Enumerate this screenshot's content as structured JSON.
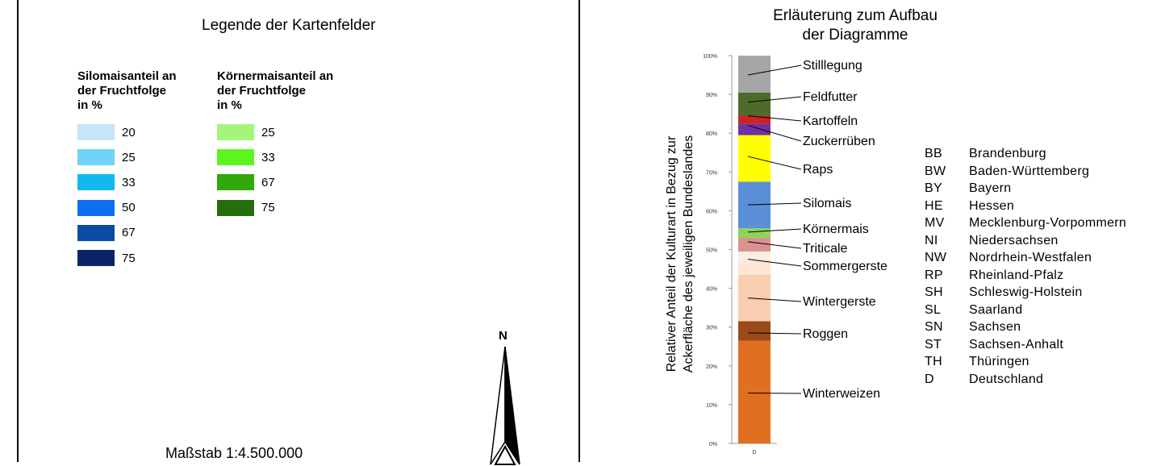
{
  "legend": {
    "title": "Legende der Kartenfelder",
    "silomais": {
      "heading": [
        "Silomaisanteil an",
        "der Fruchtfolge",
        "in %"
      ],
      "items": [
        {
          "label": "20",
          "color": "#c5e6f9"
        },
        {
          "label": "25",
          "color": "#6fd4f7"
        },
        {
          "label": "33",
          "color": "#13b8ee"
        },
        {
          "label": "50",
          "color": "#0d6ff0"
        },
        {
          "label": "67",
          "color": "#0c4aa6"
        },
        {
          "label": "75",
          "color": "#0b2468"
        }
      ]
    },
    "koernermais": {
      "heading": [
        "Körnermaisanteil an",
        "der Fruchtfolge",
        "in %"
      ],
      "items": [
        {
          "label": "25",
          "color": "#a4f57b"
        },
        {
          "label": "33",
          "color": "#5cf520"
        },
        {
          "label": "67",
          "color": "#31a80a"
        },
        {
          "label": "75",
          "color": "#266e0c"
        }
      ]
    },
    "scale": "Maßstab 1:4.500.000",
    "north": "N"
  },
  "chart_data": {
    "type": "bar",
    "title": "Erläuterung zum Aufbau der Diagramme",
    "title_lines": [
      "Erläuterung zum Aufbau",
      "der Diagramme"
    ],
    "ylabel_lines": [
      "Relativer Anteil der Kulturart in Bezug zur",
      "Ackerfläche des jeweiligen Bundeslandes"
    ],
    "categories": [
      "D"
    ],
    "ylim": [
      0,
      100
    ],
    "y_unit": "%",
    "yticks": [
      0,
      10,
      20,
      30,
      40,
      50,
      60,
      70,
      80,
      90,
      100
    ],
    "ytick_labels": [
      "0%",
      "10%",
      "20%",
      "30%",
      "40%",
      "50%",
      "60%",
      "70%",
      "80%",
      "90%",
      "100%"
    ],
    "stacked": true,
    "series": [
      {
        "name": "Winterweizen",
        "values": [
          26.5
        ],
        "color": "#e07020"
      },
      {
        "name": "Roggen",
        "values": [
          5
        ],
        "color": "#9a4a1a"
      },
      {
        "name": "Wintergerste",
        "values": [
          12
        ],
        "color": "#f9cdb0"
      },
      {
        "name": "Sommergerste",
        "values": [
          3.5
        ],
        "color": "#fde6d6"
      },
      {
        "name": "Triticale",
        "values": [
          2.5
        ],
        "color": "#fbeee4"
      },
      {
        "name": "Körnermais",
        "values": [
          3.5
        ],
        "color": "#dc9090"
      },
      {
        "name": "Silomais",
        "values": [
          2.5
        ],
        "color": "#8ed45a"
      },
      {
        "name": "Raps",
        "values": [
          12
        ],
        "color": "#5b8fd8"
      },
      {
        "name": "Zuckerrüben",
        "values": [
          12
        ],
        "color": "#ffff00"
      },
      {
        "name": "Kartoffeln",
        "values": [
          3
        ],
        "color": "#7030a0"
      },
      {
        "name": "Feldfutter",
        "values": [
          2
        ],
        "color": "#d02020"
      },
      {
        "name": "Stilllegung",
        "values": [
          6
        ],
        "color": "#4e6b2c"
      },
      {
        "name": "",
        "values": [
          9.5
        ],
        "color": "#a6a6a6"
      }
    ],
    "annotations": [
      {
        "label": "Stilllegung",
        "points_to": 95
      },
      {
        "label": "Feldfutter",
        "points_to": 88
      },
      {
        "label": "Kartoffeln",
        "points_to": 84.5
      },
      {
        "label": "Zuckerrüben",
        "points_to": 82
      },
      {
        "label": "Raps",
        "points_to": 74
      },
      {
        "label": "Silomais",
        "points_to": 61.5
      },
      {
        "label": "Körnermais",
        "points_to": 54.5
      },
      {
        "label": "Triticale",
        "points_to": 52
      },
      {
        "label": "Sommergerste",
        "points_to": 47.5
      },
      {
        "label": "Wintergerste",
        "points_to": 37.5
      },
      {
        "label": "Roggen",
        "points_to": 28.5
      },
      {
        "label": "Winterweizen",
        "points_to": 13
      }
    ]
  },
  "abbreviations": [
    {
      "code": "BB",
      "name": "Brandenburg"
    },
    {
      "code": "BW",
      "name": "Baden-Württemberg"
    },
    {
      "code": "BY",
      "name": "Bayern"
    },
    {
      "code": "HE",
      "name": "Hessen"
    },
    {
      "code": "MV",
      "name": "Mecklenburg-Vorpommern"
    },
    {
      "code": "NI",
      "name": "Niedersachsen"
    },
    {
      "code": "NW",
      "name": "Nordrhein-Westfalen"
    },
    {
      "code": "RP",
      "name": "Rheinland-Pfalz"
    },
    {
      "code": "SH",
      "name": "Schleswig-Holstein"
    },
    {
      "code": "SL",
      "name": "Saarland"
    },
    {
      "code": "SN",
      "name": "Sachsen"
    },
    {
      "code": "ST",
      "name": "Sachsen-Anhalt"
    },
    {
      "code": "TH",
      "name": "Thüringen"
    },
    {
      "code": "D",
      "name": "Deutschland"
    }
  ]
}
